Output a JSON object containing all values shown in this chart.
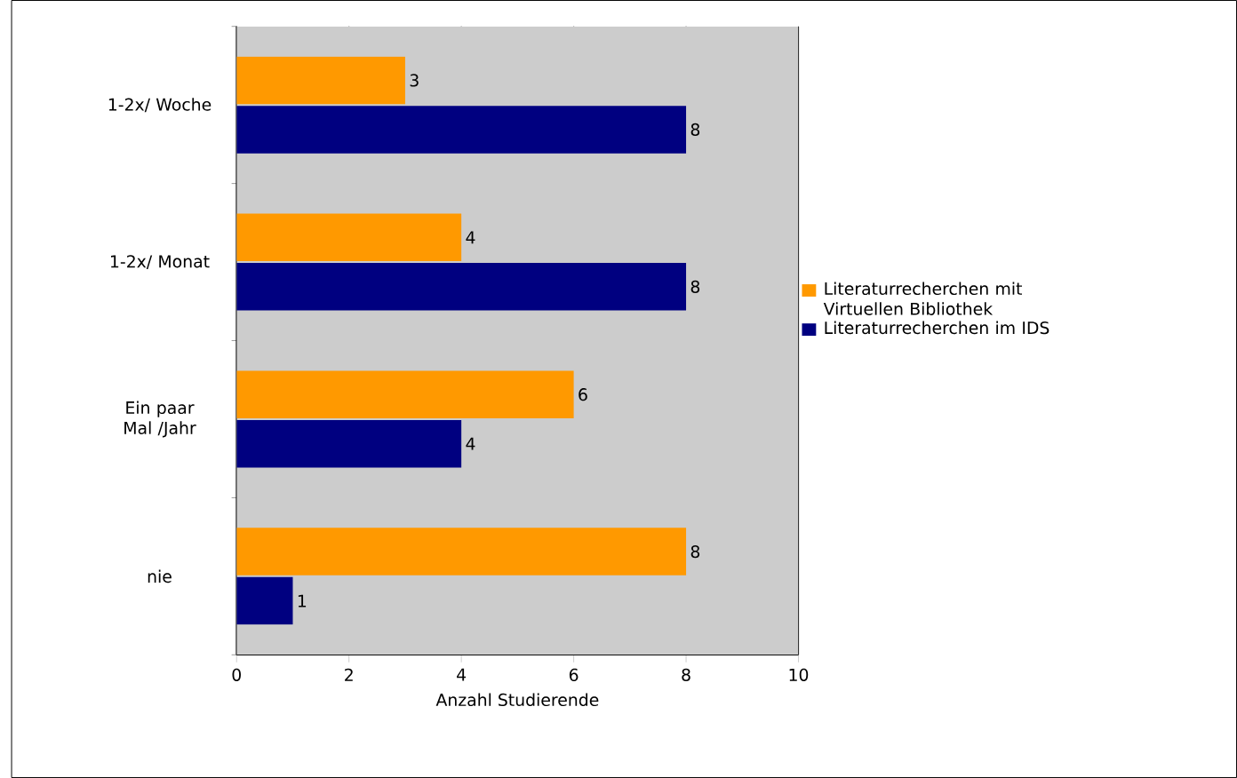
{
  "chart_data": {
    "type": "bar",
    "orientation": "horizontal",
    "xlabel": "Anzahl Studierende",
    "categories": [
      "1-2x/ Woche",
      "1-2x/ Monat",
      "Ein paar Mal /Jahr",
      "nie"
    ],
    "series": [
      {
        "name": "Literaturrecherchen mit Virtuellen Bibliothek",
        "color": "#ff9900",
        "values": [
          3,
          4,
          6,
          8
        ]
      },
      {
        "name": "Literaturrecherchen im IDS",
        "color": "#000080",
        "values": [
          8,
          8,
          4,
          1
        ]
      }
    ],
    "xlim": [
      0,
      10
    ],
    "xticks": [
      0,
      2,
      4,
      6,
      8,
      10
    ],
    "grid": "x",
    "legend": "right",
    "data_labels": true
  }
}
